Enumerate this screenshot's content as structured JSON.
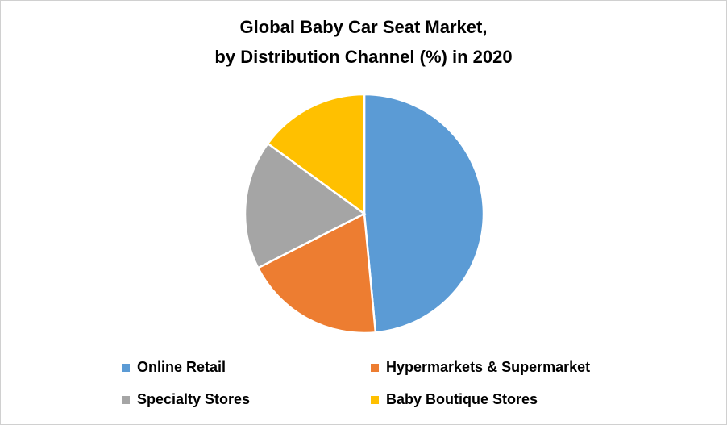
{
  "chart_data": {
    "type": "pie",
    "title_line1": "Global Baby Car Seat Market,",
    "title_line2": "by Distribution Channel (%) in 2020",
    "categories": [
      "Online Retail",
      "Hypermarkets & Supermarket",
      "Specialty Stores",
      "Baby Boutique Stores"
    ],
    "values": [
      48.5,
      19,
      17.5,
      15
    ],
    "colors": [
      "#5b9bd5",
      "#ed7d31",
      "#a5a5a5",
      "#ffc000"
    ],
    "legend_position": "bottom"
  }
}
